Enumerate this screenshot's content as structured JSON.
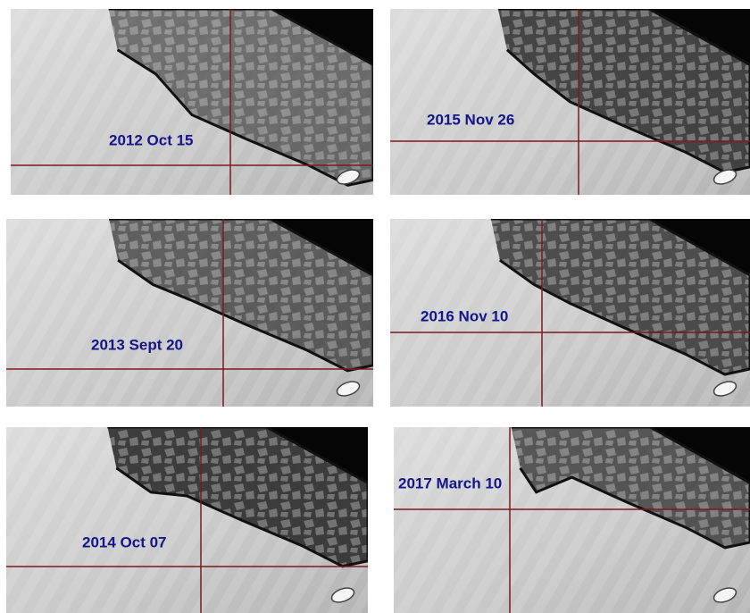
{
  "panels": [
    {
      "label": "2012 Oct 15"
    },
    {
      "label": "2015 Nov 26"
    },
    {
      "label": "2013 Sept 20"
    },
    {
      "label": "2016 Nov 10"
    },
    {
      "label": "2014 Oct 07"
    },
    {
      "label": "2017 March 10"
    }
  ]
}
